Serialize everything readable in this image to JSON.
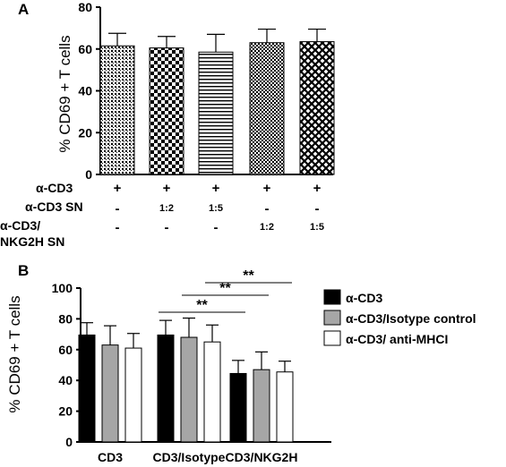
{
  "chart_data": [
    {
      "panel_label": "A",
      "type": "bar",
      "ylabel": "% CD69 + T cells",
      "ylim": [
        0,
        80
      ],
      "yticks": [
        "0",
        "20",
        "40",
        "60",
        "80"
      ],
      "values": [
        61.5,
        60.5,
        58.5,
        63,
        63.5
      ],
      "errors": [
        6,
        5.5,
        8.5,
        6.5,
        6
      ],
      "patterns": [
        "fine-dots",
        "checker",
        "horizontal-lines",
        "fine-checker",
        "diamond-lattice"
      ],
      "condition_rows": [
        {
          "label": "α-CD3",
          "cells": [
            "+",
            "+",
            "+",
            "+",
            "+"
          ]
        },
        {
          "label": "α-CD3 SN",
          "cells": [
            "-",
            "1:2",
            "1:5",
            "-",
            "-"
          ]
        },
        {
          "label_lines": [
            "α-CD3/",
            "NKG2H SN"
          ],
          "cells": [
            "-",
            "-",
            "-",
            "1:2",
            "1:5"
          ]
        }
      ]
    },
    {
      "panel_label": "B",
      "type": "bar",
      "ylabel": "% CD69 + T cells",
      "ylim": [
        0,
        100
      ],
      "yticks": [
        "0",
        "20",
        "40",
        "60",
        "80",
        "100"
      ],
      "categories": [
        "CD3",
        "CD3/Isotype",
        "CD3/NKG2H"
      ],
      "series": [
        {
          "name": "α-CD3",
          "color": "#000000",
          "values": [
            69.5,
            69.5,
            44.5
          ],
          "errors": [
            8,
            9.5,
            8.5
          ]
        },
        {
          "name": "α-CD3/Isotype control",
          "color": "#a6a6a6",
          "values": [
            63,
            68,
            47
          ],
          "errors": [
            12.5,
            12.5,
            11.5
          ]
        },
        {
          "name": "α-CD3/ anti-MHCI",
          "color": "#ffffff",
          "values": [
            61,
            65,
            45.5
          ],
          "errors": [
            9.5,
            11,
            7
          ]
        }
      ],
      "significance": [
        {
          "label": "**",
          "from": [
            1,
            0
          ],
          "to": [
            2,
            0
          ]
        },
        {
          "label": "**",
          "from": [
            1,
            1
          ],
          "to": [
            2,
            1
          ]
        },
        {
          "label": "**",
          "from": [
            1,
            2
          ],
          "to": [
            2,
            2
          ]
        }
      ],
      "legend_position": "top-right"
    }
  ]
}
